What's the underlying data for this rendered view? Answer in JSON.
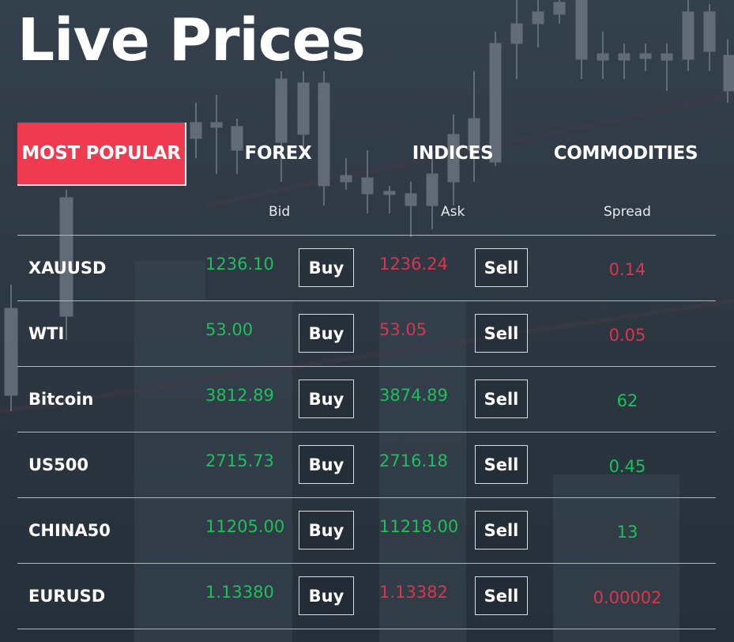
{
  "title": "Live Prices",
  "tabs": [
    {
      "label": "MOST POPULAR",
      "active": true
    },
    {
      "label": "FOREX",
      "active": false
    },
    {
      "label": "INDICES",
      "active": false
    },
    {
      "label": "COMMODITIES",
      "active": false
    }
  ],
  "columns": {
    "bid": "Bid",
    "ask": "Ask",
    "spread": "Spread"
  },
  "buy_label": "Buy",
  "sell_label": "Sell",
  "rows": [
    {
      "symbol": "XAUUSD",
      "bid": "1236.10",
      "bid_dir": "up",
      "ask": "1236.24",
      "ask_dir": "down",
      "spread": "0.14",
      "spread_dir": "down"
    },
    {
      "symbol": "WTI",
      "bid": "53.00",
      "bid_dir": "up",
      "ask": "53.05",
      "ask_dir": "down",
      "spread": "0.05",
      "spread_dir": "down"
    },
    {
      "symbol": "Bitcoin",
      "bid": "3812.89",
      "bid_dir": "up",
      "ask": "3874.89",
      "ask_dir": "up",
      "spread": "62",
      "spread_dir": "up"
    },
    {
      "symbol": "US500",
      "bid": "2715.73",
      "bid_dir": "up",
      "ask": "2716.18",
      "ask_dir": "up",
      "spread": "0.45",
      "spread_dir": "up"
    },
    {
      "symbol": "CHINA50",
      "bid": "11205.00",
      "bid_dir": "up",
      "ask": "11218.00",
      "ask_dir": "up",
      "spread": "13",
      "spread_dir": "up"
    },
    {
      "symbol": "EURUSD",
      "bid": "1.13380",
      "bid_dir": "up",
      "ask": "1.13382",
      "ask_dir": "down",
      "spread": "0.00002",
      "spread_dir": "down"
    }
  ],
  "colors": {
    "accent": "#f03a4f",
    "up": "#1fbf5c",
    "down": "#d9364c",
    "background": "#2b3540"
  }
}
